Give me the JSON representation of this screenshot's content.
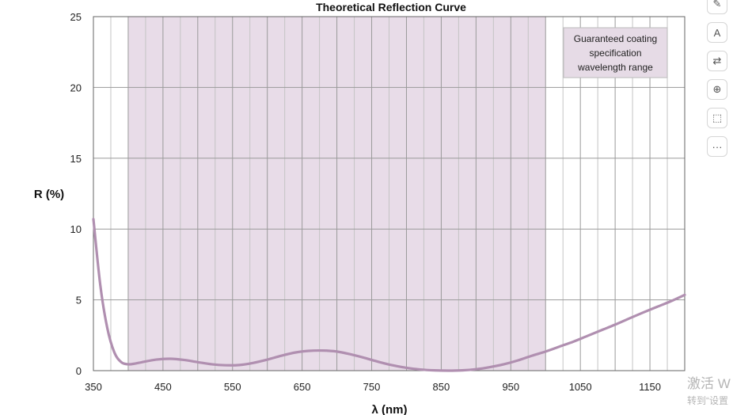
{
  "chart_data": {
    "type": "line",
    "title": "Theoretical Reflection Curve",
    "xlabel": "λ (nm)",
    "ylabel": "R (%)",
    "xlim": [
      350,
      1200
    ],
    "ylim": [
      0,
      25
    ],
    "xticks": [
      350,
      450,
      550,
      650,
      750,
      850,
      950,
      1050,
      1150
    ],
    "yticks": [
      0,
      5,
      10,
      15,
      20,
      25
    ],
    "grid": true,
    "series": [
      {
        "color": "#b08fb0",
        "x": [
          350,
          360,
          370,
          380,
          390,
          400,
          410,
          420,
          440,
          460,
          480,
          500,
          520,
          540,
          560,
          580,
          600,
          620,
          640,
          660,
          680,
          700,
          720,
          740,
          760,
          780,
          800,
          820,
          840,
          860,
          880,
          900,
          920,
          940,
          960,
          980,
          1000,
          1020,
          1040,
          1060,
          1080,
          1100,
          1120,
          1140,
          1160,
          1180,
          1200
        ],
        "y": [
          10.7,
          6.0,
          3.0,
          1.3,
          0.6,
          0.45,
          0.5,
          0.6,
          0.78,
          0.84,
          0.76,
          0.6,
          0.45,
          0.38,
          0.4,
          0.55,
          0.78,
          1.05,
          1.28,
          1.4,
          1.42,
          1.35,
          1.15,
          0.9,
          0.62,
          0.38,
          0.2,
          0.08,
          0.02,
          0.0,
          0.02,
          0.1,
          0.25,
          0.45,
          0.72,
          1.05,
          1.35,
          1.7,
          2.05,
          2.45,
          2.85,
          3.25,
          3.68,
          4.1,
          4.5,
          4.9,
          5.35
        ]
      }
    ],
    "shaded_region": {
      "x_start": 400,
      "x_end": 1000,
      "color": "#e8dce8",
      "label": "Guaranteed coating specification wavelength range",
      "label_lines": [
        "Guaranteed coating",
        "specification",
        "wavelength range"
      ]
    }
  },
  "toolbar": {
    "icons": [
      "draw-icon",
      "text-edit-icon",
      "translate-icon",
      "zoom-icon",
      "select-area-icon",
      "more-icon"
    ],
    "more_label": "···"
  },
  "watermark": {
    "line1": "激活 W",
    "line2": "转到“设置"
  }
}
